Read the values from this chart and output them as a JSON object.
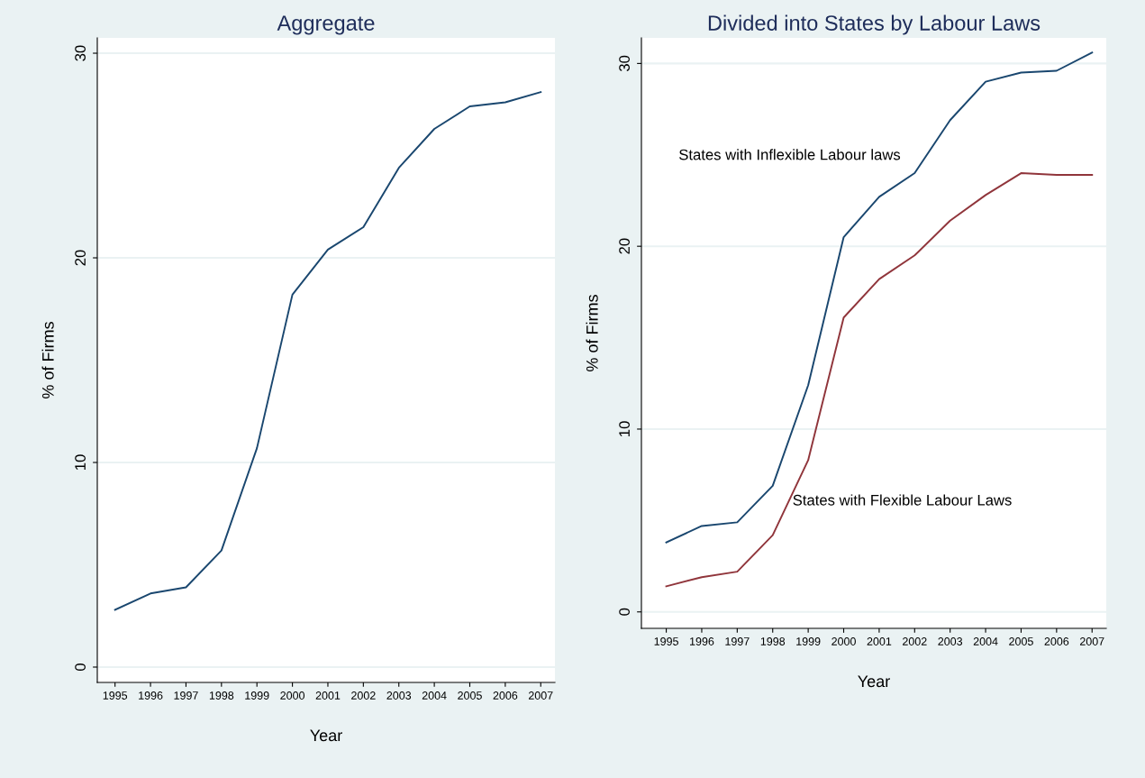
{
  "chart_data": [
    {
      "type": "line",
      "title": "Aggregate",
      "xlabel": "Year",
      "ylabel": "% of Firms",
      "x": [
        1995,
        1996,
        1997,
        1998,
        1999,
        2000,
        2001,
        2002,
        2003,
        2004,
        2005,
        2006,
        2007
      ],
      "series": [
        {
          "color": "#1a476f",
          "values": [
            2.8,
            3.6,
            3.9,
            5.7,
            10.7,
            18.2,
            20.4,
            21.5,
            24.4,
            26.3,
            27.4,
            27.6,
            28.1
          ]
        }
      ],
      "xlim": [
        1994.5,
        2007.4
      ],
      "ylim": [
        -0.75,
        30.75
      ],
      "xticks": [
        1995,
        1996,
        1997,
        1998,
        1999,
        2000,
        2001,
        2002,
        2003,
        2004,
        2005,
        2006,
        2007
      ],
      "yticks": [
        0,
        10,
        20,
        30
      ],
      "grid": "y",
      "legend": false
    },
    {
      "type": "line",
      "title": "Divided into States by Labour Laws",
      "xlabel": "Year",
      "ylabel": "% of Firms",
      "x": [
        1995,
        1996,
        1997,
        1998,
        1999,
        2000,
        2001,
        2002,
        2003,
        2004,
        2005,
        2006,
        2007
      ],
      "series": [
        {
          "name": "States with Inflexible Labour laws",
          "color": "#1a476f",
          "values": [
            3.8,
            4.7,
            4.9,
            6.9,
            12.4,
            20.5,
            22.7,
            24.0,
            26.9,
            29.0,
            29.5,
            29.6,
            30.6
          ]
        },
        {
          "name": "States with Flexible Labour Laws",
          "color": "#90353b",
          "values": [
            1.4,
            1.9,
            2.2,
            4.2,
            8.3,
            16.1,
            18.2,
            19.5,
            21.4,
            22.8,
            24.0,
            23.9,
            23.9
          ]
        }
      ],
      "xlim": [
        1994.3,
        2007.4
      ],
      "ylim": [
        -0.9,
        31.4
      ],
      "xticks": [
        1995,
        1996,
        1997,
        1998,
        1999,
        2000,
        2001,
        2002,
        2003,
        2004,
        2005,
        2006,
        2007
      ],
      "yticks": [
        0,
        10,
        20,
        30
      ],
      "grid": "y",
      "legend": false
    }
  ]
}
